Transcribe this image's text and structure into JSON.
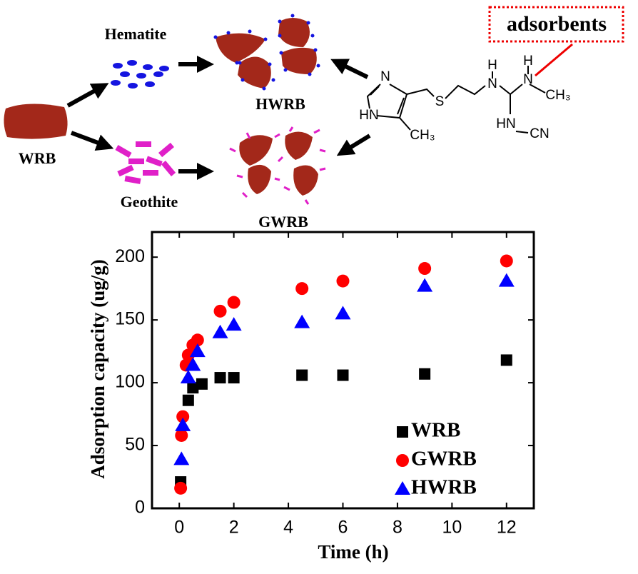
{
  "diagram": {
    "wrb": "WRB",
    "hematite": "Hematite",
    "geothite": "Geothite",
    "hwrb": "HWRB",
    "gwrb": "GWRB",
    "callout": "adsorbents",
    "molecule": [
      "N",
      "HN",
      "CH₃",
      "S",
      "H",
      "N",
      "H",
      "N",
      "CH₃",
      "HN",
      "CN"
    ]
  },
  "chart_data": {
    "type": "scatter",
    "xlabel": "Time (h)",
    "ylabel": "Adsorption capacity (ug/g)",
    "xlim": [
      -1,
      13
    ],
    "xticks": [
      0,
      2,
      4,
      6,
      8,
      10,
      12
    ],
    "ylim": [
      0,
      220
    ],
    "yticks": [
      0,
      50,
      100,
      150,
      200
    ],
    "legend": "lower right",
    "series": [
      {
        "name": "WRB",
        "color": "#000000",
        "marker": "square",
        "x": [
          0.05,
          0.33,
          0.5,
          0.83,
          1.5,
          2,
          4.5,
          6,
          9,
          12
        ],
        "values": [
          21,
          86,
          96,
          99,
          104,
          104,
          106,
          106,
          107,
          118
        ]
      },
      {
        "name": "GWRB",
        "color": "#ff0000",
        "marker": "circle",
        "x": [
          0.05,
          0.08,
          0.13,
          0.25,
          0.33,
          0.5,
          0.67,
          1.5,
          2,
          4.5,
          6,
          9,
          12
        ],
        "values": [
          16,
          58,
          73,
          114,
          122,
          130,
          134,
          157,
          164,
          175,
          181,
          191,
          197
        ]
      },
      {
        "name": "HWRB",
        "color": "#0000ff",
        "marker": "triangle",
        "x": [
          0.08,
          0.13,
          0.33,
          0.5,
          0.67,
          1.5,
          2,
          4.5,
          6,
          9,
          12
        ],
        "values": [
          39,
          66,
          104,
          114,
          125,
          140,
          146,
          148,
          155,
          177,
          181
        ]
      }
    ]
  }
}
